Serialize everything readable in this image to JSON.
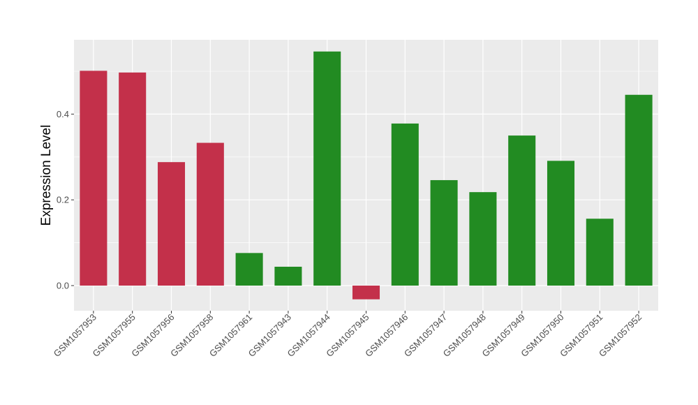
{
  "chart_data": {
    "type": "bar",
    "title": "",
    "xlabel": "",
    "ylabel": "Expression Level",
    "ylim": [
      -0.06,
      0.6
    ],
    "yticks": [
      0.0,
      0.2,
      0.4
    ],
    "ytick_labels": [
      "0.0",
      "0.2",
      "0.4"
    ],
    "grid": true,
    "legend": "none",
    "colors": {
      "red": "#c3304a",
      "green": "#228b22",
      "panel": "#ebebeb",
      "grid": "#ffffff"
    },
    "categories": [
      "GSM1057953",
      "GSM1057955",
      "GSM1057956",
      "GSM1057958",
      "GSM1057961",
      "GSM1057943",
      "GSM1057944",
      "GSM1057945",
      "GSM1057946",
      "GSM1057947",
      "GSM1057948",
      "GSM1057949",
      "GSM1057950",
      "GSM1057951",
      "GSM1057952"
    ],
    "values": [
      0.501,
      0.497,
      0.288,
      0.333,
      0.076,
      0.044,
      0.546,
      -0.032,
      0.378,
      0.246,
      0.218,
      0.35,
      0.291,
      0.156,
      0.445
    ],
    "bar_colors": [
      "red",
      "red",
      "red",
      "red",
      "green",
      "green",
      "green",
      "red",
      "green",
      "green",
      "green",
      "green",
      "green",
      "green",
      "green"
    ]
  }
}
